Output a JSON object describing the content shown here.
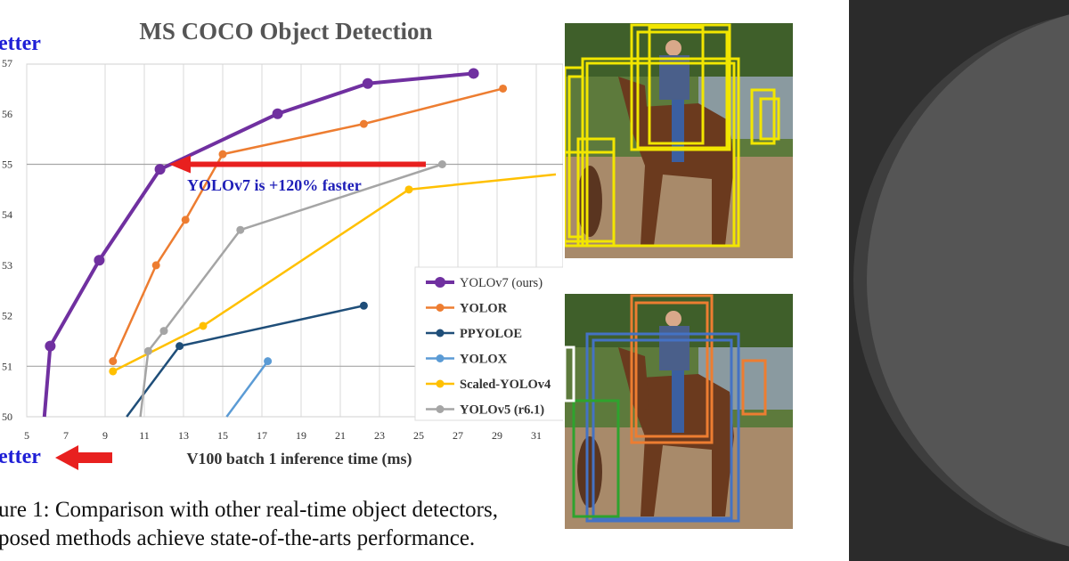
{
  "chart_data": {
    "type": "line",
    "title": "MS COCO Object Detection",
    "xlabel": "V100 batch 1 inference time (ms)",
    "ylabel": "",
    "xlim": [
      5,
      32
    ],
    "ylim": [
      50,
      57
    ],
    "x_ticks": [
      5,
      7,
      9,
      11,
      13,
      15,
      17,
      19,
      21,
      23,
      25,
      27,
      29,
      31
    ],
    "y_ticks": [
      50,
      51,
      52,
      53,
      54,
      55,
      56,
      57
    ],
    "y_tick_labels": [
      "50",
      "51",
      "52",
      "53",
      "54",
      "55",
      "56",
      "57"
    ],
    "grid": "horizontal at 51 and 55, vertical at 5 and 9 through 31",
    "legend_position": "right",
    "corner_labels": {
      "top": "etter",
      "bottom": "etter"
    },
    "annotation": "YOLOv7 is +120% faster",
    "series": [
      {
        "name": "YOLOv7 (ours)",
        "color": "#7030a0",
        "x": [
          5.9,
          6.2,
          8.7,
          11.8,
          17.8,
          22.4,
          27.8
        ],
        "y": [
          50.0,
          51.4,
          53.1,
          54.9,
          56.0,
          56.6,
          56.8
        ]
      },
      {
        "name": "YOLOR",
        "color": "#ed7d31",
        "x": [
          9.4,
          11.6,
          13.1,
          15.0,
          22.2,
          29.3
        ],
        "y": [
          51.1,
          53.0,
          53.9,
          55.2,
          55.8,
          56.5
        ]
      },
      {
        "name": "PPYOLOE",
        "color": "#1f4e79",
        "x": [
          10.1,
          12.8,
          22.2
        ],
        "y": [
          50.0,
          51.4,
          52.2
        ]
      },
      {
        "name": "YOLOX",
        "color": "#5b9bd5",
        "x": [
          15.2,
          17.3
        ],
        "y": [
          50.0,
          51.1
        ]
      },
      {
        "name": "Scaled-YOLOv4",
        "color": "#ffc000",
        "x": [
          9.4,
          14.0,
          24.5,
          32.0
        ],
        "y": [
          50.9,
          51.8,
          54.5,
          54.8
        ]
      },
      {
        "name": "YOLOv5 (r6.1)",
        "color": "#a5a5a5",
        "x": [
          10.8,
          11.2,
          12.0,
          15.9,
          26.2
        ],
        "y": [
          50.0,
          51.3,
          51.7,
          53.7,
          55.0
        ]
      }
    ]
  },
  "caption": {
    "line1": "ure 1:  Comparison with other real-time object detectors,",
    "line2": "posed methods achieve state-of-the-arts performance."
  },
  "photos": {
    "top_box_color": "#f2e600",
    "bottom_box_colors": [
      "#ed7d31",
      "#4472c4",
      "#2ea32e",
      "#ffffff"
    ]
  }
}
